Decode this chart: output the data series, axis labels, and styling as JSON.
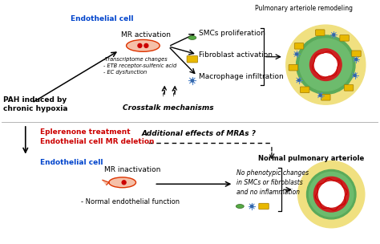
{
  "bg_color": "#ffffff",
  "title_top": "Pulmonary arteriole remodeling",
  "title_bottom_right": "Normal pulmonary arteriole",
  "label_ec1": "Endothelial cell",
  "label_ec2": "Endothelial cell",
  "label_mr_act": "MR activation",
  "label_mr_inact": "MR inactivation",
  "label_pah": "PAH induced by\nchronic hypoxia",
  "label_smc": "SMCs proliferation",
  "label_fibro": "Fibroblast activation",
  "label_macro": "Macrophage infiltration",
  "label_crosstalk": "Crosstalk mechanisms",
  "label_transcriptome": "-Transcriptome changes\n- ETB receptor-sulfenic acid\n- EC dysfunction",
  "label_normal_endo": "- Normal endothelial function",
  "label_eplerenone": "Eplerenone treatment",
  "label_ec_deletion": "Endothelial cell MR deletion",
  "label_additional": "Additional effects of MRAs ?",
  "label_no_phenotypic": "No phenotypic changes\nin SMCs or fibroblasts\nand no inflammation",
  "blue_text_color": "#0044cc",
  "red_text_color": "#cc0000",
  "black_text_color": "#000000"
}
